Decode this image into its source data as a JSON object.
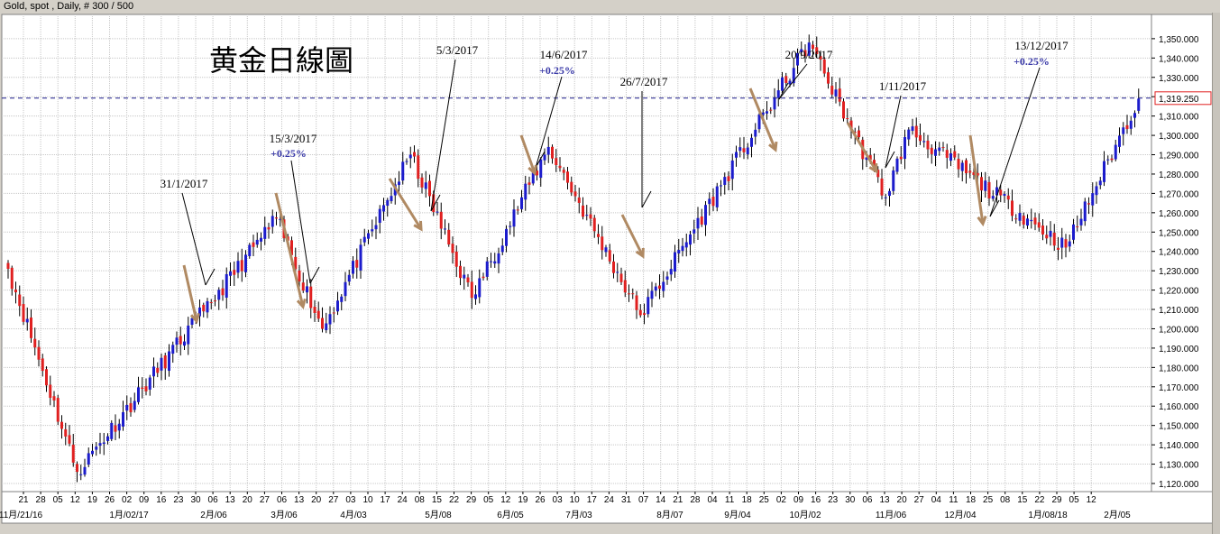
{
  "window": {
    "header_text": "Gold, spot , Daily, # 300 / 500"
  },
  "colors": {
    "plot_bg": "#ffffff",
    "grid": "#c8c8c8",
    "up_candle": "#1c1ccc",
    "down_candle": "#e02020",
    "wick": "#000000",
    "arrow": "#b08a63",
    "current_line": "#1e1e8c",
    "price_box_border": "#e02020",
    "annotation_pct": "#3a3aa8"
  },
  "chart_data": {
    "type": "candlestick",
    "title": "黄金日線圖",
    "instrument": "Gold, spot",
    "timeframe": "Daily",
    "ylim": [
      1115,
      1362
    ],
    "y_ticks": [
      1120,
      1130,
      1140,
      1150,
      1160,
      1170,
      1180,
      1190,
      1200,
      1210,
      1220,
      1230,
      1240,
      1250,
      1260,
      1270,
      1280,
      1290,
      1300,
      1310,
      1320,
      1330,
      1340,
      1350
    ],
    "y_tick_labels": [
      "1,120.000",
      "1,130.000",
      "1,140.000",
      "1,150.000",
      "1,160.000",
      "1,170.000",
      "1,180.000",
      "1,190.000",
      "1,200.000",
      "1,210.000",
      "1,220.000",
      "1,230.000",
      "1,240.000",
      "1,250.000",
      "1,260.000",
      "1,270.000",
      "1,280.000",
      "1,290.000",
      "1,300.000",
      "1,310.000",
      "1,320.000",
      "1,330.000",
      "1,340.000",
      "1,350.000"
    ],
    "current_price": 1319.25,
    "current_price_label": "1,319.250",
    "x_day_labels": [
      "21",
      "28",
      "05",
      "12",
      "19",
      "26",
      "02",
      "09",
      "16",
      "23",
      "30",
      "06",
      "13",
      "20",
      "27",
      "06",
      "13",
      "20",
      "27",
      "03",
      "10",
      "17",
      "24",
      "08",
      "15",
      "22",
      "29",
      "05",
      "12",
      "19",
      "26",
      "03",
      "10",
      "17",
      "24",
      "31",
      "07",
      "14",
      "21",
      "28",
      "04",
      "11",
      "18",
      "25",
      "02",
      "09",
      "16",
      "23",
      "30",
      "06",
      "13",
      "20",
      "27",
      "04",
      "11",
      "18",
      "25",
      "08",
      "15",
      "22",
      "29",
      "05",
      "12"
    ],
    "x_month_labels": [
      "11月/21/16",
      "1月/02/17",
      "2月/06",
      "3月/06",
      "4月/03",
      "5月/08",
      "6月/05",
      "7月/03",
      "8月/07",
      "9月/04",
      "10月/02",
      "11月/06",
      "12月/04",
      "1月/08/18",
      "2月/05"
    ],
    "key_points": [
      {
        "date": "2016-11-21",
        "close": 1231
      },
      {
        "date": "2016-12-15",
        "close": 1126
      },
      {
        "date": "2017-01-31",
        "close": 1209
      },
      {
        "date": "2017-02-27",
        "close": 1257
      },
      {
        "date": "2017-03-15",
        "close": 1200
      },
      {
        "date": "2017-04-17",
        "close": 1290
      },
      {
        "date": "2017-05-09",
        "close": 1216
      },
      {
        "date": "2017-06-06",
        "close": 1294
      },
      {
        "date": "2017-07-10",
        "close": 1207
      },
      {
        "date": "2017-09-08",
        "close": 1348
      },
      {
        "date": "2017-10-06",
        "close": 1268
      },
      {
        "date": "2017-10-16",
        "close": 1303
      },
      {
        "date": "2017-12-12",
        "close": 1242
      },
      {
        "date": "2018-01-08",
        "close": 1319
      }
    ],
    "annotations": [
      {
        "text": "31/1/2017",
        "pct": ""
      },
      {
        "text": "15/3/2017",
        "pct": "+0.25%"
      },
      {
        "text": "5/3/2017",
        "pct": ""
      },
      {
        "text": "14/6/2017",
        "pct": "+0.25%"
      },
      {
        "text": "26/7/2017",
        "pct": ""
      },
      {
        "text": "20/9/2017",
        "pct": ""
      },
      {
        "text": "1/11/2017",
        "pct": ""
      },
      {
        "text": "13/12/2017",
        "pct": "+0.25%"
      }
    ]
  }
}
